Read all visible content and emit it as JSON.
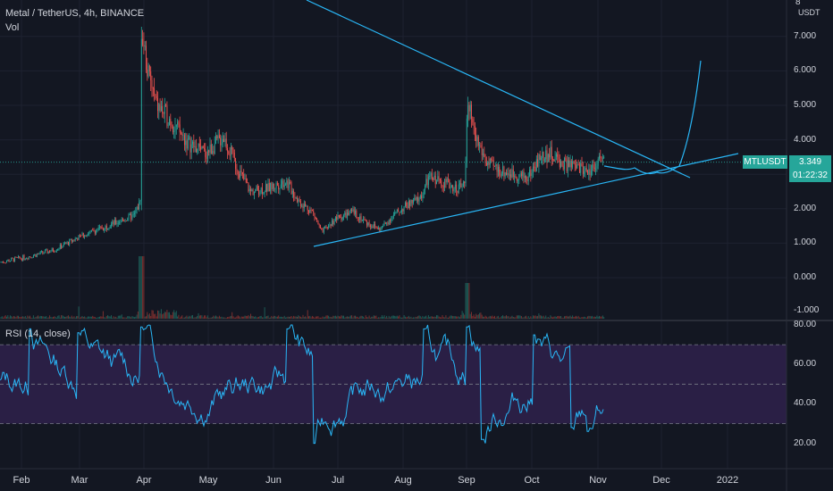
{
  "header": {
    "title": "Metal / TetherUS, 4h, BINANCE",
    "volume_label": "Vol",
    "rsi_label": "RSI (14, close)"
  },
  "price_axis": {
    "unit": "USDT",
    "ticks": [
      "8.000",
      "7.000",
      "6.000",
      "5.000",
      "4.000",
      "3.000",
      "2.000",
      "1.000",
      "0.000",
      "-1.000"
    ],
    "top_tick": "8"
  },
  "rsi_axis": {
    "ticks": [
      "80.00",
      "60.00",
      "40.00",
      "20.00"
    ]
  },
  "time_axis": {
    "ticks": [
      "Feb",
      "Mar",
      "Apr",
      "May",
      "Jun",
      "Jul",
      "Aug",
      "Sep",
      "Oct",
      "Nov",
      "Dec",
      "2022"
    ]
  },
  "last_price": {
    "symbol": "MTLUSDT",
    "price": "3.349",
    "countdown": "01:22:32"
  },
  "colors": {
    "background": "#131722",
    "up": "#26a69a",
    "down": "#ef5350",
    "drawing": "#29b6f6",
    "rsi_line": "#29b6f6",
    "rsi_band": "#2a1f45"
  },
  "chart_data": {
    "type": "line",
    "title": "Metal / TetherUS, 4h, BINANCE",
    "price_range": [
      -1.0,
      8.0
    ],
    "rsi_range": [
      20,
      80
    ],
    "rsi_bands": [
      70,
      50,
      30
    ],
    "price_path": {
      "x": [
        "Feb 1",
        "Feb 15",
        "Mar 1",
        "Mar 15",
        "Mar 28",
        "Apr 1",
        "Apr 10",
        "Apr 20",
        "May 1",
        "May 10",
        "May 20",
        "Jun 1",
        "Jun 10",
        "Jun 20",
        "Jul 1",
        "Jul 10",
        "Jul 20",
        "Aug 1",
        "Aug 10",
        "Aug 20",
        "Sep 1",
        "Sep 5",
        "Sep 15",
        "Oct 1",
        "Oct 10",
        "Oct 20",
        "Nov 1"
      ],
      "y": [
        0.45,
        0.75,
        1.3,
        1.5,
        2.0,
        7.2,
        5.2,
        4.3,
        3.6,
        4.0,
        3.2,
        2.5,
        2.4,
        1.8,
        1.6,
        2.0,
        1.9,
        1.7,
        2.4,
        2.8,
        3.0,
        5.0,
        3.2,
        3.1,
        3.6,
        3.4,
        3.35
      ]
    },
    "annotations": [
      "descending trendline",
      "ascending trendline",
      "projected path"
    ]
  }
}
